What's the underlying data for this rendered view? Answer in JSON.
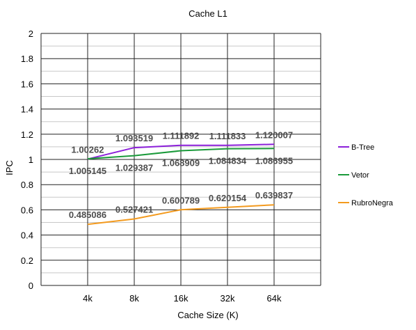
{
  "chart_data": {
    "type": "line",
    "title": "Cache L1",
    "xlabel": "Cache Size (K)",
    "ylabel": "IPC",
    "categories": [
      "4k",
      "8k",
      "16k",
      "32k",
      "64k"
    ],
    "ylim": [
      0,
      2
    ],
    "yticks": [
      "0",
      "0.2",
      "0.4",
      "0.6",
      "0.8",
      "1",
      "1.2",
      "1.4",
      "1.6",
      "1.8",
      "2"
    ],
    "grid": true,
    "legend_position": "right",
    "series": [
      {
        "name": "B-Tree",
        "color": "#8b1fd9",
        "values": [
          1.00262,
          1.093519,
          1.111892,
          1.111833,
          1.120007
        ],
        "labels": [
          "1.00262",
          "1.093519",
          "1.111892",
          "1.111833",
          "1.120007"
        ],
        "label_pos": "above"
      },
      {
        "name": "Vetor",
        "color": "#1a9a3a",
        "values": [
          1.005145,
          1.029387,
          1.068909,
          1.084834,
          1.086955
        ],
        "labels": [
          "1.005145",
          "1.029387",
          "1.068909",
          "1.084834",
          "1.086955"
        ],
        "label_pos": "below"
      },
      {
        "name": "RubroNegra",
        "color": "#f39a1e",
        "values": [
          0.485086,
          0.527421,
          0.600789,
          0.620154,
          0.639837
        ],
        "labels": [
          "0.485086",
          "0.527421",
          "0.600789",
          "0.620154",
          "0.639837"
        ],
        "label_pos": "above"
      }
    ]
  }
}
